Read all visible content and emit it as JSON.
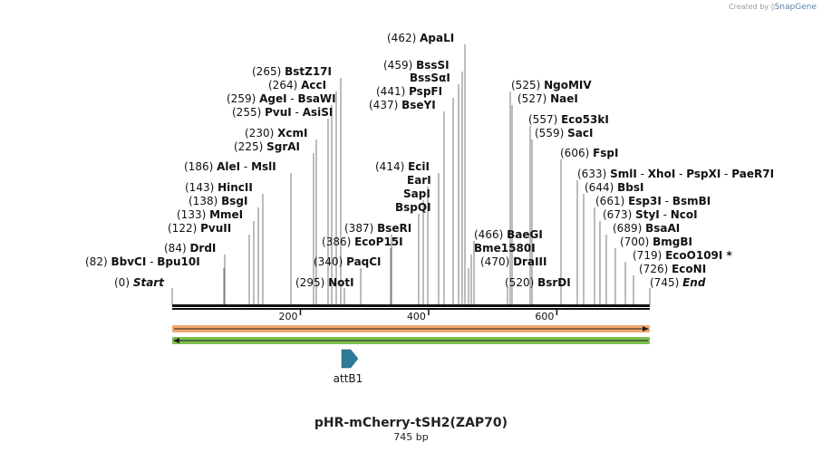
{
  "credit": {
    "prefix": "Created by",
    "brand": "SnapGene"
  },
  "plasmid": {
    "name": "pHR-mCherry-tSH2(ZAP70)",
    "length_label": "745 bp",
    "length": 745
  },
  "axis": {
    "ticks": [
      200,
      400,
      600
    ]
  },
  "sites": [
    {
      "id": "start",
      "pos": "(0)",
      "labels": [
        "Start"
      ],
      "italic": true
    },
    {
      "id": "bbvci",
      "pos": "(82)",
      "labels": [
        "BbvCI",
        "Bpu10I"
      ]
    },
    {
      "id": "drdi",
      "pos": "(84)",
      "labels": [
        "DrdI"
      ]
    },
    {
      "id": "pvuii",
      "pos": "(122)",
      "labels": [
        "PvuII"
      ]
    },
    {
      "id": "mmei",
      "pos": "(133)",
      "labels": [
        "MmeI"
      ]
    },
    {
      "id": "bsgi",
      "pos": "(138)",
      "labels": [
        "BsgI"
      ]
    },
    {
      "id": "hincii",
      "pos": "(143)",
      "labels": [
        "HincII"
      ]
    },
    {
      "id": "alei",
      "pos": "(186)",
      "labels": [
        "AleI",
        "MslI"
      ]
    },
    {
      "id": "sgrai",
      "pos": "(225)",
      "labels": [
        "SgrAI"
      ]
    },
    {
      "id": "xcmi",
      "pos": "(230)",
      "labels": [
        "XcmI"
      ]
    },
    {
      "id": "pvui",
      "pos": "(255)",
      "labels": [
        "PvuI",
        "AsiSI"
      ]
    },
    {
      "id": "agei",
      "pos": "(259)",
      "labels": [
        "AgeI",
        "BsaWI"
      ]
    },
    {
      "id": "acci",
      "pos": "(264)",
      "labels": [
        "AccI"
      ]
    },
    {
      "id": "bstz17i",
      "pos": "(265)",
      "labels": [
        "BstZ17I"
      ]
    },
    {
      "id": "noti",
      "pos": "(295)",
      "labels": [
        "NotI"
      ]
    },
    {
      "id": "paqci",
      "pos": "(340)",
      "labels": [
        "PaqCI"
      ]
    },
    {
      "id": "ecop15i",
      "pos": "(386)",
      "labels": [
        "EcoP15I"
      ]
    },
    {
      "id": "bseri",
      "pos": "(387)",
      "labels": [
        "BseRI"
      ]
    },
    {
      "id": "bspqi",
      "pos": "",
      "labels": [
        "BspQI"
      ]
    },
    {
      "id": "sapi",
      "pos": "",
      "labels": [
        "SapI"
      ]
    },
    {
      "id": "eari",
      "pos": "",
      "labels": [
        "EarI"
      ]
    },
    {
      "id": "ecii",
      "pos": "(414)",
      "labels": [
        "EciI"
      ]
    },
    {
      "id": "bseyi",
      "pos": "(437)",
      "labels": [
        "BseYI"
      ]
    },
    {
      "id": "pspfi",
      "pos": "(441)",
      "labels": [
        "PspFI"
      ]
    },
    {
      "id": "bsssai",
      "pos": "",
      "labels": [
        "BssSαI"
      ]
    },
    {
      "id": "bsssi",
      "pos": "(459)",
      "labels": [
        "BssSI"
      ]
    },
    {
      "id": "apali",
      "pos": "(462)",
      "labels": [
        "ApaLI"
      ]
    },
    {
      "id": "draiii",
      "pos": "(470)",
      "labels": [
        "DraIII"
      ]
    },
    {
      "id": "bme1580i",
      "pos": "",
      "labels": [
        "Bme1580I"
      ]
    },
    {
      "id": "baegi",
      "pos": "(466)",
      "labels": [
        "BaeGI"
      ]
    },
    {
      "id": "bsrdi",
      "pos": "(520)",
      "labels": [
        "BsrDI"
      ]
    },
    {
      "id": "ngomiv",
      "pos": "(525)",
      "labels": [
        "NgoMIV"
      ]
    },
    {
      "id": "naei",
      "pos": "(527)",
      "labels": [
        "NaeI"
      ]
    },
    {
      "id": "eco53ki",
      "pos": "(557)",
      "labels": [
        "Eco53kI"
      ]
    },
    {
      "id": "saci",
      "pos": "(559)",
      "labels": [
        "SacI"
      ]
    },
    {
      "id": "fspi",
      "pos": "(606)",
      "labels": [
        "FspI"
      ]
    },
    {
      "id": "smli",
      "pos": "(633)",
      "labels": [
        "SmlI",
        "XhoI",
        "PspXI",
        "PaeR7I"
      ]
    },
    {
      "id": "bbsi",
      "pos": "(644)",
      "labels": [
        "BbsI"
      ]
    },
    {
      "id": "esp3i",
      "pos": "(661)",
      "labels": [
        "Esp3I",
        "BsmBI"
      ]
    },
    {
      "id": "styi",
      "pos": "(673)",
      "labels": [
        "StyI",
        "NcoI"
      ]
    },
    {
      "id": "bsaai",
      "pos": "(689)",
      "labels": [
        "BsaAI"
      ]
    },
    {
      "id": "bmgbi",
      "pos": "(700)",
      "labels": [
        "BmgBI"
      ]
    },
    {
      "id": "eco0109i",
      "pos": "(719)",
      "labels": [
        "EcoO109I *"
      ]
    },
    {
      "id": "econi",
      "pos": "(726)",
      "labels": [
        "EcoNI"
      ]
    },
    {
      "id": "end",
      "pos": "(745)",
      "labels": [
        "End"
      ],
      "italic": true
    }
  ],
  "features": [
    {
      "id": "attb1",
      "name": "attB1",
      "color": "#2f7a98"
    }
  ],
  "colors": {
    "forward_bar": "#f2a86b",
    "reverse_bar": "#7ac04f",
    "backbone": "#111111",
    "leader": "#7a7a7a",
    "feature": "#2f7a98"
  }
}
